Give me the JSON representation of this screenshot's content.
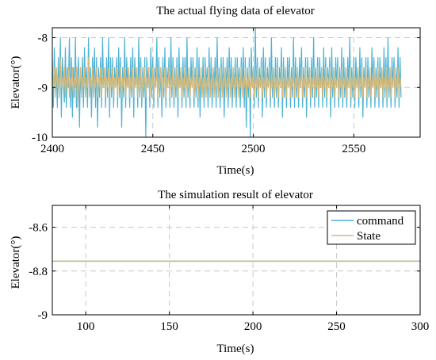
{
  "chart_data": [
    {
      "type": "line",
      "title": "The actual flying data of elevator",
      "xlabel": "Time(s)",
      "ylabel": "Elevator(°)",
      "xlim": [
        2400,
        2583
      ],
      "ylim": [
        -10,
        -7.8
      ],
      "xticks": [
        2400,
        2450,
        2500,
        2550
      ],
      "xtick_labels": [
        "2400",
        "2450",
        "2500",
        "2550"
      ],
      "yticks": [
        -10,
        -9,
        -8
      ],
      "ytick_labels": [
        "-10",
        "-9",
        "-8"
      ],
      "grid": true,
      "legend": "none",
      "series": [
        {
          "color": "#4db3d6",
          "sample_interval": 0.5,
          "x_start": 2400,
          "values": [
            -8.4,
            -9.4,
            -8.2,
            -9.1,
            -8.6,
            -9.4,
            -8.4,
            -9.2,
            -8.0,
            -9.6,
            -8.4,
            -8.9,
            -9.3,
            -8.2,
            -9.4,
            -8.6,
            -9.0,
            -8.0,
            -9.4,
            -8.4,
            -9.6,
            -8.6,
            -9.2,
            -8.0,
            -9.4,
            -8.8,
            -8.4,
            -9.8,
            -8.6,
            -9.2,
            -8.4,
            -9.4,
            -8.2,
            -9.0,
            -8.6,
            -9.4,
            -8.0,
            -9.2,
            -8.6,
            -9.6,
            -8.4,
            -9.0,
            -8.2,
            -9.4,
            -8.4,
            -9.8,
            -8.6,
            -9.2,
            -8.4,
            -9.4,
            -8.0,
            -9.0,
            -8.6,
            -9.4,
            -8.4,
            -9.2,
            -8.0,
            -9.6,
            -8.4,
            -9.2,
            -8.4,
            -9.4,
            -8.6,
            -9.0,
            -8.4,
            -9.4,
            -8.2,
            -9.2,
            -8.4,
            -9.8,
            -8.6,
            -9.2,
            -8.0,
            -9.4,
            -8.4,
            -9.0,
            -8.6,
            -9.4,
            -8.4,
            -9.2,
            -8.2,
            -9.6,
            -8.4,
            -9.0,
            -8.6,
            -9.4,
            -8.0,
            -9.2,
            -8.4,
            -9.4,
            -8.6,
            -9.2,
            -8.4,
            -10.0,
            -8.4,
            -9.0,
            -8.6,
            -9.4,
            -8.2,
            -9.2,
            -8.4,
            -9.4,
            -8.6,
            -9.0,
            -8.0,
            -9.4,
            -8.4,
            -9.2,
            -8.6,
            -9.6,
            -8.4,
            -9.2,
            -8.2,
            -9.4,
            -8.6,
            -9.0,
            -8.4,
            -9.4,
            -8.0,
            -9.2,
            -8.4,
            -9.4,
            -8.6,
            -9.2,
            -8.4,
            -9.6,
            -8.2,
            -9.0,
            -8.6,
            -9.4,
            -8.4,
            -9.2,
            -8.4,
            -9.4,
            -8.0,
            -9.2,
            -8.6,
            -9.4,
            -8.4,
            -9.0,
            -8.4,
            -9.4,
            -8.6,
            -9.2,
            -8.2,
            -9.4,
            -8.4,
            -9.6,
            -8.6,
            -9.2,
            -8.4,
            -9.4,
            -8.4,
            -9.0,
            -8.6,
            -9.4,
            -8.2,
            -9.2,
            -8.4,
            -9.4,
            -8.6,
            -9.0,
            -8.4,
            -9.4,
            -8.0,
            -9.2,
            -8.6,
            -9.4,
            -8.4,
            -9.2,
            -8.4,
            -9.6,
            -8.6,
            -9.0,
            -8.4,
            -9.4,
            -8.2,
            -9.2,
            -8.4,
            -9.4,
            -8.6,
            -9.2,
            -8.4,
            -9.4,
            -8.4,
            -9.0,
            -8.6,
            -9.4,
            -8.4,
            -9.2,
            -8.2,
            -9.4,
            -8.4,
            -9.8,
            -8.6,
            -9.2,
            -8.4,
            -10.0,
            -8.2,
            -9.0,
            -8.6,
            -9.4,
            -7.8,
            -9.2,
            -8.4,
            -9.4,
            -8.6,
            -9.0,
            -8.4,
            -9.6,
            -8.2,
            -9.2,
            -8.4,
            -9.4,
            -8.6,
            -9.0,
            -8.4,
            -9.4,
            -8.0,
            -9.2,
            -8.6,
            -9.4,
            -8.4,
            -9.2,
            -8.4,
            -9.4,
            -8.6,
            -9.0,
            -8.2,
            -9.6,
            -8.4,
            -9.2,
            -8.6,
            -9.4,
            -8.4,
            -9.0,
            -8.4,
            -9.4,
            -8.6,
            -9.2,
            -8.0,
            -9.4,
            -8.4,
            -9.2,
            -8.6,
            -9.4,
            -8.4,
            -9.0,
            -8.2,
            -9.4,
            -8.6,
            -9.2,
            -8.4,
            -9.6,
            -8.4,
            -9.0,
            -8.6,
            -9.4,
            -8.4,
            -9.2,
            -8.0,
            -9.4,
            -8.6,
            -9.2,
            -8.4,
            -9.4,
            -8.4,
            -9.0,
            -8.6,
            -9.4,
            -8.2,
            -9.2,
            -8.4,
            -9.4,
            -8.6,
            -9.0,
            -8.4,
            -9.6,
            -8.2,
            -9.2,
            -8.6,
            -9.4,
            -8.4,
            -9.0,
            -8.4,
            -9.4,
            -8.6,
            -9.2,
            -8.2,
            -9.4,
            -8.4,
            -9.2,
            -8.6,
            -9.4,
            -8.4,
            -9.0,
            -8.0,
            -9.4,
            -8.6,
            -9.2,
            -8.4,
            -9.4,
            -8.4,
            -9.0,
            -8.6,
            -9.4,
            -8.2,
            -9.2,
            -8.4,
            -9.6,
            -8.6,
            -9.0,
            -8.4,
            -9.4,
            -8.4,
            -9.2,
            -8.6,
            -9.4,
            -8.2,
            -9.0,
            -8.4,
            -9.4,
            -8.6,
            -9.2,
            -8.4,
            -9.4,
            -8.4,
            -9.0,
            -8.6,
            -9.4,
            -8.2,
            -9.2,
            -8.4,
            -9.4,
            -8.0,
            -9.2,
            -8.6,
            -9.4,
            -8.4,
            -9.0,
            -8.4,
            -9.4,
            -8.6,
            -9.2,
            -8.2,
            -9.4,
            -8.4,
            -9.2
          ]
        },
        {
          "color": "#d5b97a",
          "sample_interval": 0.5,
          "x_start": 2400,
          "values": [
            -8.8,
            -9.0,
            -8.6,
            -9.2,
            -8.6,
            -9.0,
            -8.8,
            -9.2,
            -8.4,
            -9.0,
            -8.8,
            -9.0,
            -8.6,
            -9.2,
            -8.8,
            -9.0,
            -8.6,
            -9.2,
            -8.8,
            -9.0,
            -8.6,
            -9.2,
            -8.8,
            -9.0,
            -8.6,
            -9.4,
            -8.8,
            -9.0,
            -8.6,
            -9.2,
            -8.8,
            -9.0,
            -8.6,
            -9.2,
            -8.8,
            -9.0,
            -8.4,
            -9.2,
            -8.8,
            -9.0,
            -8.6,
            -9.2,
            -8.8,
            -9.0,
            -8.6,
            -9.2,
            -8.8,
            -9.0,
            -8.6,
            -9.2,
            -8.8,
            -9.0,
            -8.6,
            -9.2,
            -8.8,
            -9.0,
            -8.6,
            -9.2,
            -8.8,
            -9.0,
            -8.6,
            -9.2,
            -8.8,
            -9.0,
            -8.6,
            -9.2,
            -8.8,
            -9.0,
            -8.6,
            -9.2,
            -8.8,
            -9.0,
            -8.6,
            -9.2,
            -8.8,
            -9.0,
            -8.6,
            -9.2,
            -8.8,
            -9.0,
            -8.6,
            -9.2,
            -8.8,
            -9.0,
            -8.6,
            -9.2,
            -8.8,
            -9.0,
            -8.6,
            -9.2,
            -8.8,
            -9.0,
            -8.6,
            -9.2,
            -8.8,
            -9.0,
            -8.6,
            -9.2,
            -8.8,
            -9.0,
            -8.6,
            -9.2,
            -8.8,
            -9.0,
            -8.6,
            -9.2,
            -8.8,
            -9.0,
            -8.6,
            -9.2,
            -8.8,
            -9.0,
            -8.6,
            -9.2,
            -8.8,
            -9.0,
            -8.6,
            -9.2,
            -8.8,
            -9.0,
            -8.6,
            -9.2,
            -8.8,
            -9.0,
            -8.6,
            -9.2,
            -8.8,
            -9.0,
            -8.6,
            -9.2,
            -8.8,
            -9.0,
            -8.6,
            -9.2,
            -8.8,
            -9.0,
            -8.6,
            -9.2,
            -8.8,
            -9.0,
            -8.6,
            -9.2,
            -8.8,
            -9.0,
            -8.6,
            -9.2,
            -8.8,
            -9.0,
            -8.6,
            -9.2,
            -8.8,
            -9.0,
            -8.6,
            -9.2,
            -8.8,
            -9.0,
            -8.6,
            -9.2,
            -8.8,
            -9.0,
            -8.6,
            -9.2,
            -8.8,
            -9.0,
            -8.6,
            -9.2,
            -8.8,
            -9.0,
            -8.6,
            -9.2,
            -8.8,
            -9.0,
            -8.6,
            -9.2,
            -8.8,
            -9.0,
            -8.6,
            -9.2,
            -8.8,
            -9.0,
            -8.6,
            -9.2,
            -8.8,
            -9.0,
            -8.6,
            -9.2,
            -8.8,
            -9.0,
            -8.6,
            -9.2,
            -8.8,
            -9.0,
            -8.6,
            -9.2,
            -8.8,
            -9.0,
            -8.6,
            -9.2,
            -8.8,
            -9.0,
            -8.6,
            -9.2,
            -8.8,
            -9.0,
            -8.6,
            -9.2,
            -8.8,
            -9.0,
            -8.6,
            -9.2,
            -8.8,
            -9.0,
            -8.6,
            -9.2,
            -8.8,
            -9.0,
            -8.6,
            -9.2,
            -8.8,
            -9.0,
            -8.6,
            -9.2,
            -8.8,
            -9.0,
            -8.6,
            -9.2,
            -8.8,
            -9.0,
            -8.6,
            -9.2,
            -8.8,
            -9.0,
            -8.6,
            -9.2,
            -8.8,
            -9.0,
            -8.6,
            -9.2,
            -8.8,
            -9.0,
            -8.6,
            -9.2,
            -8.8,
            -9.0,
            -8.6,
            -9.2,
            -8.8,
            -9.0,
            -8.6,
            -9.2,
            -8.8,
            -9.0,
            -8.6,
            -9.2,
            -8.8,
            -9.0,
            -8.6,
            -9.2,
            -8.8,
            -9.0,
            -8.6,
            -9.2,
            -8.8,
            -9.0,
            -8.6,
            -9.2,
            -8.8,
            -9.0,
            -8.6,
            -9.2,
            -8.8,
            -9.0,
            -8.6,
            -9.2,
            -8.8,
            -9.0,
            -8.6,
            -9.2,
            -8.8,
            -9.0,
            -8.6,
            -9.2,
            -8.8,
            -9.0,
            -8.6,
            -9.2,
            -8.8,
            -9.0,
            -8.6,
            -9.2,
            -8.8,
            -9.0,
            -8.6,
            -9.2,
            -8.8,
            -9.0,
            -8.6,
            -9.2,
            -8.8,
            -9.0,
            -8.6,
            -9.2,
            -8.8,
            -9.0,
            -8.6,
            -9.2,
            -8.8,
            -9.0,
            -8.6,
            -9.2,
            -8.8,
            -9.0,
            -8.6,
            -9.2,
            -8.8,
            -9.0,
            -8.6,
            -9.2,
            -8.8,
            -9.0,
            -8.6,
            -9.2,
            -8.8,
            -9.0,
            -8.6,
            -9.2,
            -8.8,
            -9.0,
            -8.6,
            -9.2,
            -8.8,
            -9.0,
            -8.6,
            -9.2,
            -8.8,
            -9.0,
            -8.6,
            -9.2,
            -8.8,
            -9.0,
            -8.6,
            -9.2,
            -8.8,
            -9.0,
            -8.6,
            -9.2,
            -8.8,
            -9.0
          ]
        }
      ]
    },
    {
      "type": "line",
      "title": "The simulation result of elevator",
      "xlabel": "Time(s)",
      "ylabel": "Elevator(°)",
      "xlim": [
        80,
        300
      ],
      "ylim": [
        -9,
        -8.5
      ],
      "xticks": [
        100,
        150,
        200,
        250,
        300
      ],
      "xtick_labels": [
        "100",
        "150",
        "200",
        "250",
        "300"
      ],
      "yticks": [
        -9,
        -8.8,
        -8.6
      ],
      "ytick_labels": [
        "-9",
        "-8.8",
        "-8.6"
      ],
      "grid": true,
      "legend": "top-right",
      "series": [
        {
          "name": "command",
          "color": "#4db3d6",
          "x": [
            80,
            300
          ],
          "y": [
            -8.755,
            -8.755
          ]
        },
        {
          "name": "State",
          "color": "#d5b97a",
          "x": [
            80,
            300
          ],
          "y": [
            -8.755,
            -8.755
          ]
        }
      ]
    }
  ]
}
